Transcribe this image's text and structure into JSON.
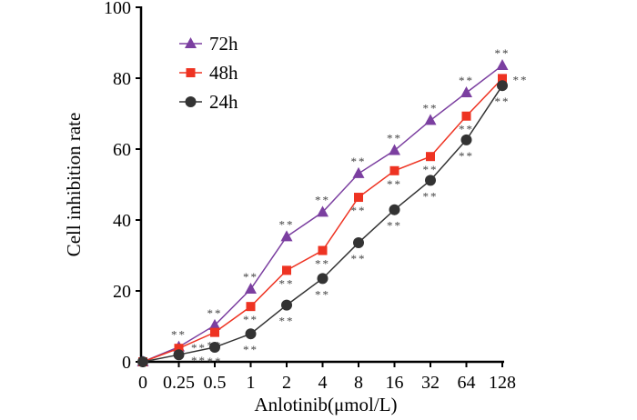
{
  "chart_data": {
    "type": "line",
    "title": "",
    "xlabel": "Anlotinib(μmol/L)",
    "ylabel": "Cell inhibition rate",
    "categories": [
      "0",
      "0.25",
      "0.5",
      "1",
      "2",
      "4",
      "8",
      "16",
      "32",
      "64",
      "128"
    ],
    "ylim": [
      0,
      100
    ],
    "yticks": [
      0,
      20,
      40,
      60,
      80,
      100
    ],
    "grid": false,
    "legend_position": "top-left",
    "significance_label": "**",
    "series": [
      {
        "name": "72h",
        "color": "#7b3fa0",
        "marker": "triangle",
        "values": [
          0,
          4.2,
          10.3,
          20.5,
          35.3,
          42.2,
          53.1,
          59.6,
          68.1,
          75.9,
          83.6
        ]
      },
      {
        "name": "48h",
        "color": "#ee3322",
        "marker": "square",
        "values": [
          0,
          3.8,
          8.3,
          15.6,
          25.8,
          31.4,
          46.4,
          53.9,
          57.9,
          69.3,
          79.9
        ]
      },
      {
        "name": "24h",
        "color": "#333333",
        "marker": "circle",
        "values": [
          0,
          2.0,
          4.1,
          7.9,
          16.0,
          23.5,
          33.6,
          42.9,
          51.2,
          62.6,
          77.9
        ]
      }
    ]
  }
}
